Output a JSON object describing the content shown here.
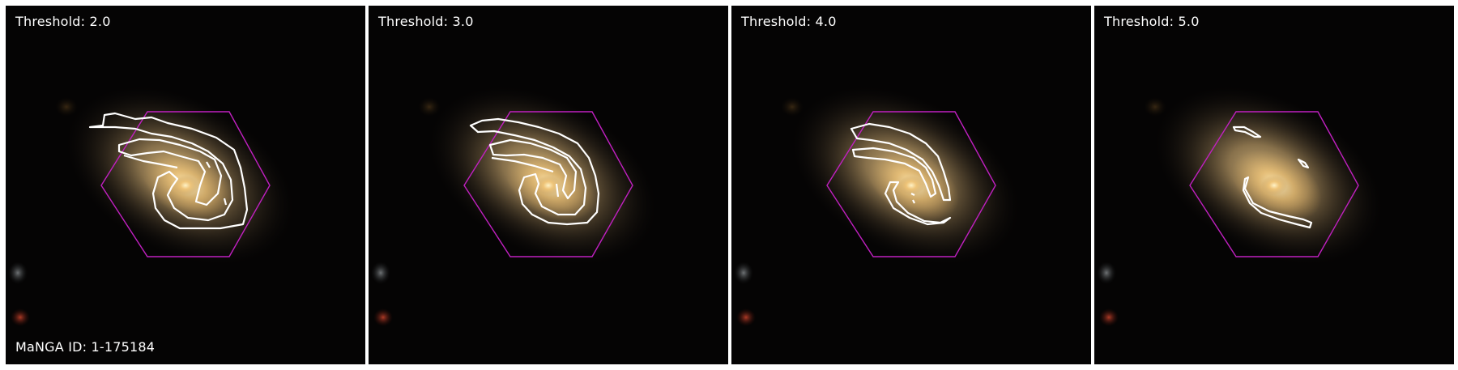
{
  "manga_id_label": "MaNGA ID: 1-175184",
  "panels": [
    {
      "threshold_label": "Threshold: 2.0",
      "threshold": 2.0
    },
    {
      "threshold_label": "Threshold: 3.0",
      "threshold": 3.0
    },
    {
      "threshold_label": "Threshold: 4.0",
      "threshold": 4.0
    },
    {
      "threshold_label": "Threshold: 5.0",
      "threshold": 5.0
    }
  ],
  "colors": {
    "background": "#050404",
    "galaxy_glow": "#c9a867",
    "galaxy_core": "#ffd88a",
    "contour": "#ffffff",
    "hexagon": "#c020c0"
  }
}
